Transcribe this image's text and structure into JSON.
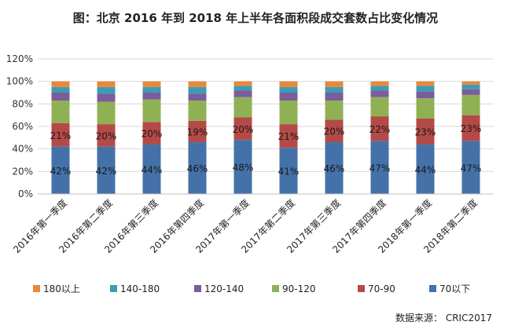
{
  "chart_data": {
    "type": "bar",
    "stacked": true,
    "title": "图：北京 2016 年到 2018 年上半年各面积段成交套数占比变化情况",
    "source": "数据来源： CRIC2017",
    "categories": [
      "2016年第一季度",
      "2016年第二季度",
      "2016年第三季度",
      "2016年第四季度",
      "2017年第一季度",
      "2017年第二季度",
      "2017年第三季度",
      "2017年第四季度",
      "2018年第一季度",
      "2018年第二季度"
    ],
    "yticks": [
      "0%",
      "20%",
      "40%",
      "60%",
      "80%",
      "100%",
      "120%"
    ],
    "ylim": [
      0,
      120
    ],
    "grid": true,
    "legend_position": "bottom",
    "series": [
      {
        "name": "70以下",
        "color": "#4472a8",
        "values": [
          42,
          42,
          44,
          46,
          48,
          41,
          46,
          47,
          44,
          47
        ],
        "labels": [
          "42%",
          "42%",
          "44%",
          "46%",
          "48%",
          "41%",
          "46%",
          "47%",
          "44%",
          "47%"
        ]
      },
      {
        "name": "70-90",
        "color": "#b44a48",
        "values": [
          21,
          20,
          20,
          19,
          20,
          21,
          20,
          22,
          23,
          23
        ],
        "labels": [
          "21%",
          "20%",
          "20%",
          "19%",
          "20%",
          "21%",
          "20%",
          "22%",
          "23%",
          "23%"
        ]
      },
      {
        "name": "90-120",
        "color": "#8fb154",
        "values": [
          20,
          20,
          20,
          18,
          18,
          21,
          17,
          17,
          18,
          18
        ],
        "labels": [
          "",
          "",
          "",
          "",
          "",
          "",
          "",
          "",
          "",
          ""
        ]
      },
      {
        "name": "120-140",
        "color": "#7b5c9c",
        "values": [
          7,
          7,
          6,
          6,
          6,
          7,
          7,
          6,
          6,
          5
        ],
        "labels": [
          "",
          "",
          "",
          "",
          "",
          "",
          "",
          "",
          "",
          ""
        ]
      },
      {
        "name": "140-180",
        "color": "#3d9cb4",
        "values": [
          5,
          6,
          5,
          6,
          4,
          5,
          5,
          4,
          5,
          4
        ],
        "labels": [
          "",
          "",
          "",
          "",
          "",
          "",
          "",
          "",
          "",
          ""
        ]
      },
      {
        "name": "180以上",
        "color": "#e8883a",
        "values": [
          5,
          5,
          5,
          5,
          4,
          5,
          5,
          4,
          4,
          3
        ],
        "labels": [
          "",
          "",
          "",
          "",
          "",
          "",
          "",
          "",
          "",
          ""
        ]
      }
    ],
    "legend_order": [
      "180以上",
      "140-180",
      "120-140",
      "90-120",
      "70-90",
      "70以下"
    ]
  }
}
